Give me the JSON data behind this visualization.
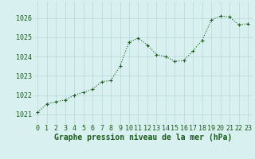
{
  "x": [
    0,
    1,
    2,
    3,
    4,
    5,
    6,
    7,
    8,
    9,
    10,
    11,
    12,
    13,
    14,
    15,
    16,
    17,
    18,
    19,
    20,
    21,
    22,
    23
  ],
  "y": [
    1021.1,
    1021.55,
    1021.65,
    1021.75,
    1022.0,
    1022.15,
    1022.3,
    1022.7,
    1022.75,
    1023.5,
    1024.75,
    1024.95,
    1024.6,
    1024.1,
    1024.0,
    1023.75,
    1023.8,
    1024.3,
    1024.85,
    1025.9,
    1026.1,
    1026.05,
    1025.65,
    1025.7
  ],
  "line_color": "#1a5c1a",
  "marker": "+",
  "background_color": "#d8f0f0",
  "grid_color": "#b8d8d8",
  "xlabel": "Graphe pression niveau de la mer (hPa)",
  "ylim_min": 1020.5,
  "ylim_max": 1026.85,
  "xlim_min": -0.5,
  "xlim_max": 23.5,
  "yticks": [
    1021,
    1022,
    1023,
    1024,
    1025,
    1026
  ],
  "xticks": [
    0,
    1,
    2,
    3,
    4,
    5,
    6,
    7,
    8,
    9,
    10,
    11,
    12,
    13,
    14,
    15,
    16,
    17,
    18,
    19,
    20,
    21,
    22,
    23
  ],
  "tick_label_color": "#1a5c1a",
  "xlabel_color": "#1a5c1a",
  "xlabel_fontsize": 7.0,
  "tick_fontsize": 6.0,
  "line_width": 0.8,
  "marker_size": 3.5,
  "marker_edge_width": 0.8
}
